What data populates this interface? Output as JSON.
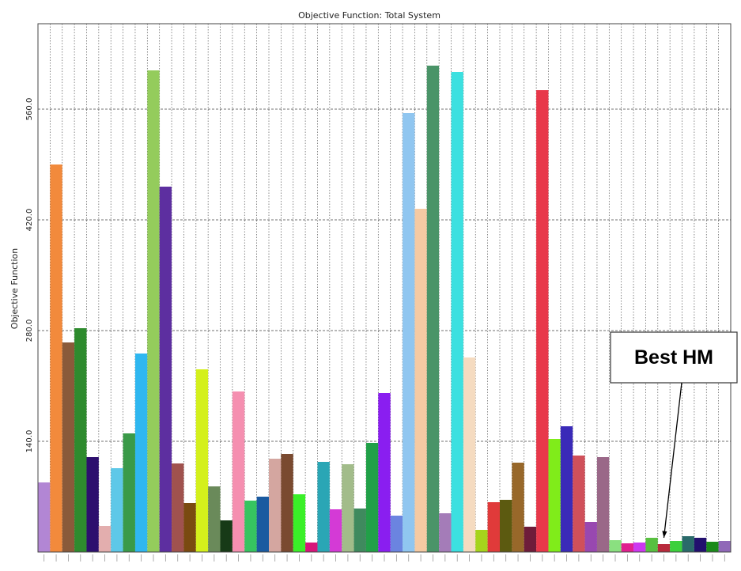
{
  "chart_data": {
    "type": "bar",
    "title": "Objective Function: Total System",
    "ylabel": "Objective Function",
    "xlabel": "",
    "ylim": [
      0,
      668
    ],
    "yticks": [
      140.0,
      280.0,
      420.0,
      560.0
    ],
    "ytick_labels": [
      "140.0",
      "280.0",
      "420.0",
      "560.0"
    ],
    "grid": true,
    "annotation": "Best HM",
    "annotation_target_index": 51,
    "values": [
      88,
      490,
      265,
      283,
      120,
      33,
      106,
      150,
      251,
      609,
      462,
      112,
      62,
      231,
      83,
      40,
      203,
      65,
      70,
      118,
      124,
      73,
      12,
      114,
      54,
      111,
      55,
      138,
      201,
      46,
      555,
      434,
      615,
      49,
      607,
      246,
      28,
      63,
      66,
      113,
      32,
      584,
      143,
      159,
      122,
      38,
      120,
      15,
      11,
      12,
      18,
      10,
      14,
      20,
      18,
      13,
      14
    ],
    "colors": [
      "#b286d4",
      "#f28a3c",
      "#8a5a3a",
      "#2e8b2e",
      "#2d0f6e",
      "#e3aeae",
      "#5ec8e8",
      "#3a9a48",
      "#2fb7f0",
      "#94cc5c",
      "#5d2fa0",
      "#a0524e",
      "#7a4a10",
      "#d4f01c",
      "#6a8a5a",
      "#173a17",
      "#f58fb0",
      "#36c460",
      "#1a5aa0",
      "#d4a6a0",
      "#7a4a30",
      "#3af028",
      "#d7157a",
      "#2aa6b5",
      "#d43ad6",
      "#a2bc8a",
      "#3f8a5e",
      "#21a048",
      "#8a1ef0",
      "#6b84e0",
      "#90c6f0",
      "#f5caa3",
      "#4a9468",
      "#a47cb8",
      "#3ce0e0",
      "#f5dbc0",
      "#a6d41c",
      "#e03a3a",
      "#5c5a10",
      "#98682a",
      "#6e1c3a",
      "#e8384a",
      "#80ec1a",
      "#3a2ab8",
      "#d0505a",
      "#9848b0",
      "#9a6888",
      "#8ae080",
      "#e0208e",
      "#cc38f0",
      "#58c040",
      "#b82a3c",
      "#3cd03c",
      "#2a6a6a",
      "#22106e",
      "#1a8a1a",
      "#9068b8"
    ]
  }
}
